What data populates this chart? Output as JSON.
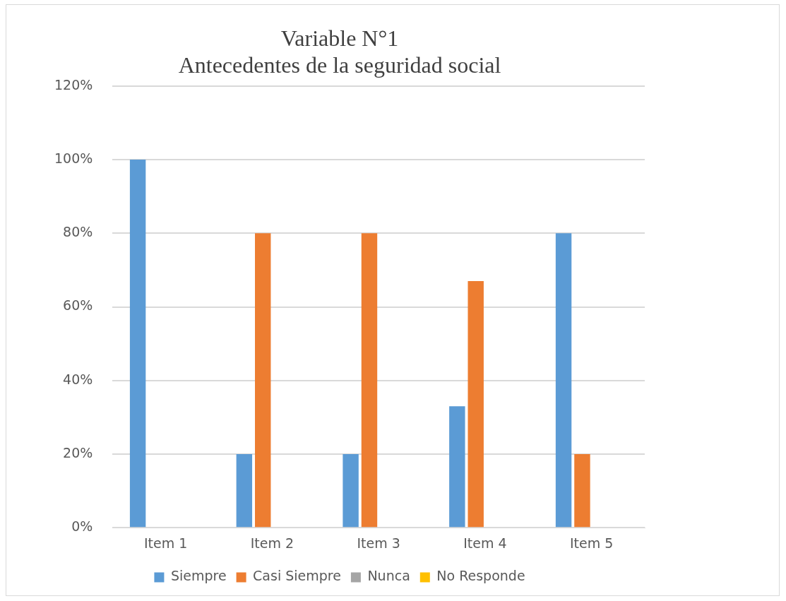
{
  "chart_data": {
    "type": "bar",
    "title": "Variable N°1\nAntecedentes de la seguridad social",
    "categories": [
      "Item 1",
      "Item 2",
      "Item 3",
      "Item 4",
      "Item 5"
    ],
    "series": [
      {
        "name": "Siempre",
        "color": "#5b9bd5",
        "values": [
          100,
          20,
          20,
          33,
          80
        ]
      },
      {
        "name": "Casi Siempre",
        "color": "#ed7d31",
        "values": [
          0,
          80,
          80,
          67,
          20
        ]
      },
      {
        "name": "Nunca",
        "color": "#a5a5a5",
        "values": [
          0,
          0,
          0,
          0,
          0
        ]
      },
      {
        "name": "No Responde",
        "color": "#ffc000",
        "values": [
          0,
          0,
          0,
          0,
          0
        ]
      }
    ],
    "ylim": [
      0,
      120
    ],
    "yticks": [
      {
        "value": 0,
        "label": "0%"
      },
      {
        "value": 20,
        "label": "20%"
      },
      {
        "value": 40,
        "label": "40%"
      },
      {
        "value": 60,
        "label": "60%"
      },
      {
        "value": 80,
        "label": "80%"
      },
      {
        "value": 100,
        "label": "100%"
      },
      {
        "value": 120,
        "label": "120%"
      }
    ],
    "grid": "y",
    "legend": "bottom"
  }
}
